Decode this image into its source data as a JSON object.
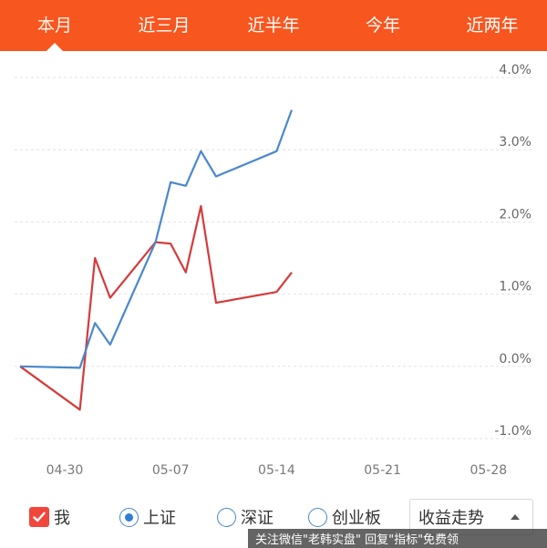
{
  "tabs": [
    {
      "label": "本月",
      "active": true
    },
    {
      "label": "近三月",
      "active": false
    },
    {
      "label": "近半年",
      "active": false
    },
    {
      "label": "今年",
      "active": false
    },
    {
      "label": "近两年",
      "active": false
    }
  ],
  "chart_data": {
    "type": "line",
    "y_ticks": [
      "4.0%",
      "3.0%",
      "2.0%",
      "1.0%",
      "0.0%",
      "-1.0%"
    ],
    "ylim": [
      -1.0,
      4.0
    ],
    "x_ticks": [
      "04-30",
      "05-07",
      "05-14",
      "05-21",
      "05-28"
    ],
    "grid": true,
    "series": [
      {
        "name": "我",
        "color": "#d63a3a",
        "points": [
          {
            "x": "04-26",
            "y": 0.0
          },
          {
            "x": "05-01",
            "y": -0.6
          },
          {
            "x": "05-02",
            "y": 1.5
          },
          {
            "x": "05-03",
            "y": 0.95
          },
          {
            "x": "05-06",
            "y": 1.72
          },
          {
            "x": "05-07",
            "y": 1.7
          },
          {
            "x": "05-08",
            "y": 1.3
          },
          {
            "x": "05-09",
            "y": 2.22
          },
          {
            "x": "05-10",
            "y": 0.88
          },
          {
            "x": "05-14",
            "y": 1.03
          },
          {
            "x": "05-15",
            "y": 1.3
          }
        ]
      },
      {
        "name": "上证",
        "color": "#4a88cc",
        "points": [
          {
            "x": "04-26",
            "y": 0.0
          },
          {
            "x": "05-01",
            "y": -0.02
          },
          {
            "x": "05-02",
            "y": 0.6
          },
          {
            "x": "05-03",
            "y": 0.3
          },
          {
            "x": "05-06",
            "y": 1.72
          },
          {
            "x": "05-07",
            "y": 2.55
          },
          {
            "x": "05-08",
            "y": 2.5
          },
          {
            "x": "05-09",
            "y": 2.98
          },
          {
            "x": "05-10",
            "y": 2.63
          },
          {
            "x": "05-14",
            "y": 2.98
          },
          {
            "x": "05-15",
            "y": 3.55
          }
        ]
      }
    ]
  },
  "legend": {
    "items": [
      {
        "label": "我",
        "control": "checkbox",
        "checked": true
      },
      {
        "label": "上证",
        "control": "radio",
        "checked": true
      },
      {
        "label": "深证",
        "control": "radio",
        "checked": false
      },
      {
        "label": "创业板",
        "control": "radio",
        "checked": false
      }
    ],
    "select_label": "收益走势"
  },
  "watermark": "关注微信\"老韩实盘\" 回复\"指标\"免费领"
}
